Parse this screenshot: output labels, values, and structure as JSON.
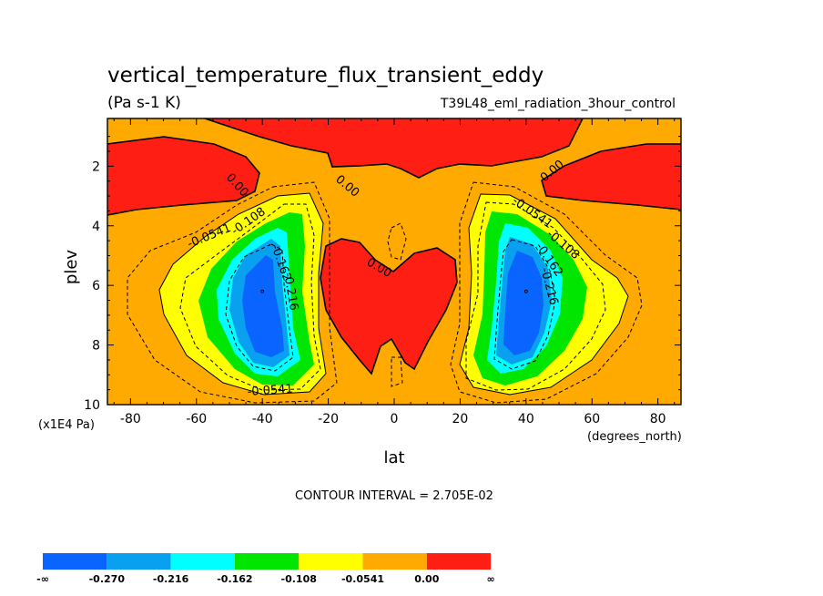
{
  "colors": {
    "neg_inf_to_m0270": "#0a64ff",
    "m0270_to_m0216": "#0aa0f0",
    "m0216_to_m0162": "#00ffff",
    "m0162_to_m0108": "#00e600",
    "m0108_to_m00541": "#ffff00",
    "m00541_to_0": "#ffaa00",
    "0_to_inf": "#ff1e14"
  },
  "chart_data": {
    "type": "contour",
    "title": "vertical_temperature_flux_transient_eddy",
    "units": "(Pa s-1 K)",
    "run_label": "T39L48_eml_radiation_3hour_control",
    "xlabel": "lat",
    "x_units": "(degrees_north)",
    "ylabel": "plev",
    "y_units": "(x1E4 Pa)",
    "xlim": [
      -87,
      87
    ],
    "ylim": [
      10,
      0.4
    ],
    "y_inverted": true,
    "x_ticks": [
      "-80",
      "-60",
      "-40",
      "-20",
      "0",
      "20",
      "40",
      "60",
      "80"
    ],
    "x_tick_values": [
      -80,
      -60,
      -40,
      -20,
      0,
      20,
      40,
      60,
      80
    ],
    "y_ticks": [
      "2",
      "4",
      "6",
      "8",
      "10"
    ],
    "y_tick_values": [
      2,
      4,
      6,
      8,
      10
    ],
    "contour_interval": "CONTOUR INTERVAL = 2.705E-02",
    "contour_labels": [
      "0.00",
      "0.00",
      "0.00",
      "0.00",
      "-0.0541",
      "-0.108",
      "-0.162",
      "-0.216",
      "-0.0541",
      "-0.108",
      "-0.162",
      "-0.216",
      "-0.0541"
    ],
    "extrema": [
      {
        "lat": -40,
        "plev": 6.2,
        "approx_value": -0.3
      },
      {
        "lat": 40,
        "plev": 6.2,
        "approx_value": -0.3
      }
    ],
    "colorbar": {
      "levels": [
        "-∞",
        "-0.270",
        "-0.216",
        "-0.162",
        "-0.108",
        "-0.0541",
        "0.00",
        "∞"
      ],
      "colors": [
        "#0a64ff",
        "#0aa0f0",
        "#00ffff",
        "#00e600",
        "#ffff00",
        "#ffaa00",
        "#ff1e14"
      ]
    }
  }
}
